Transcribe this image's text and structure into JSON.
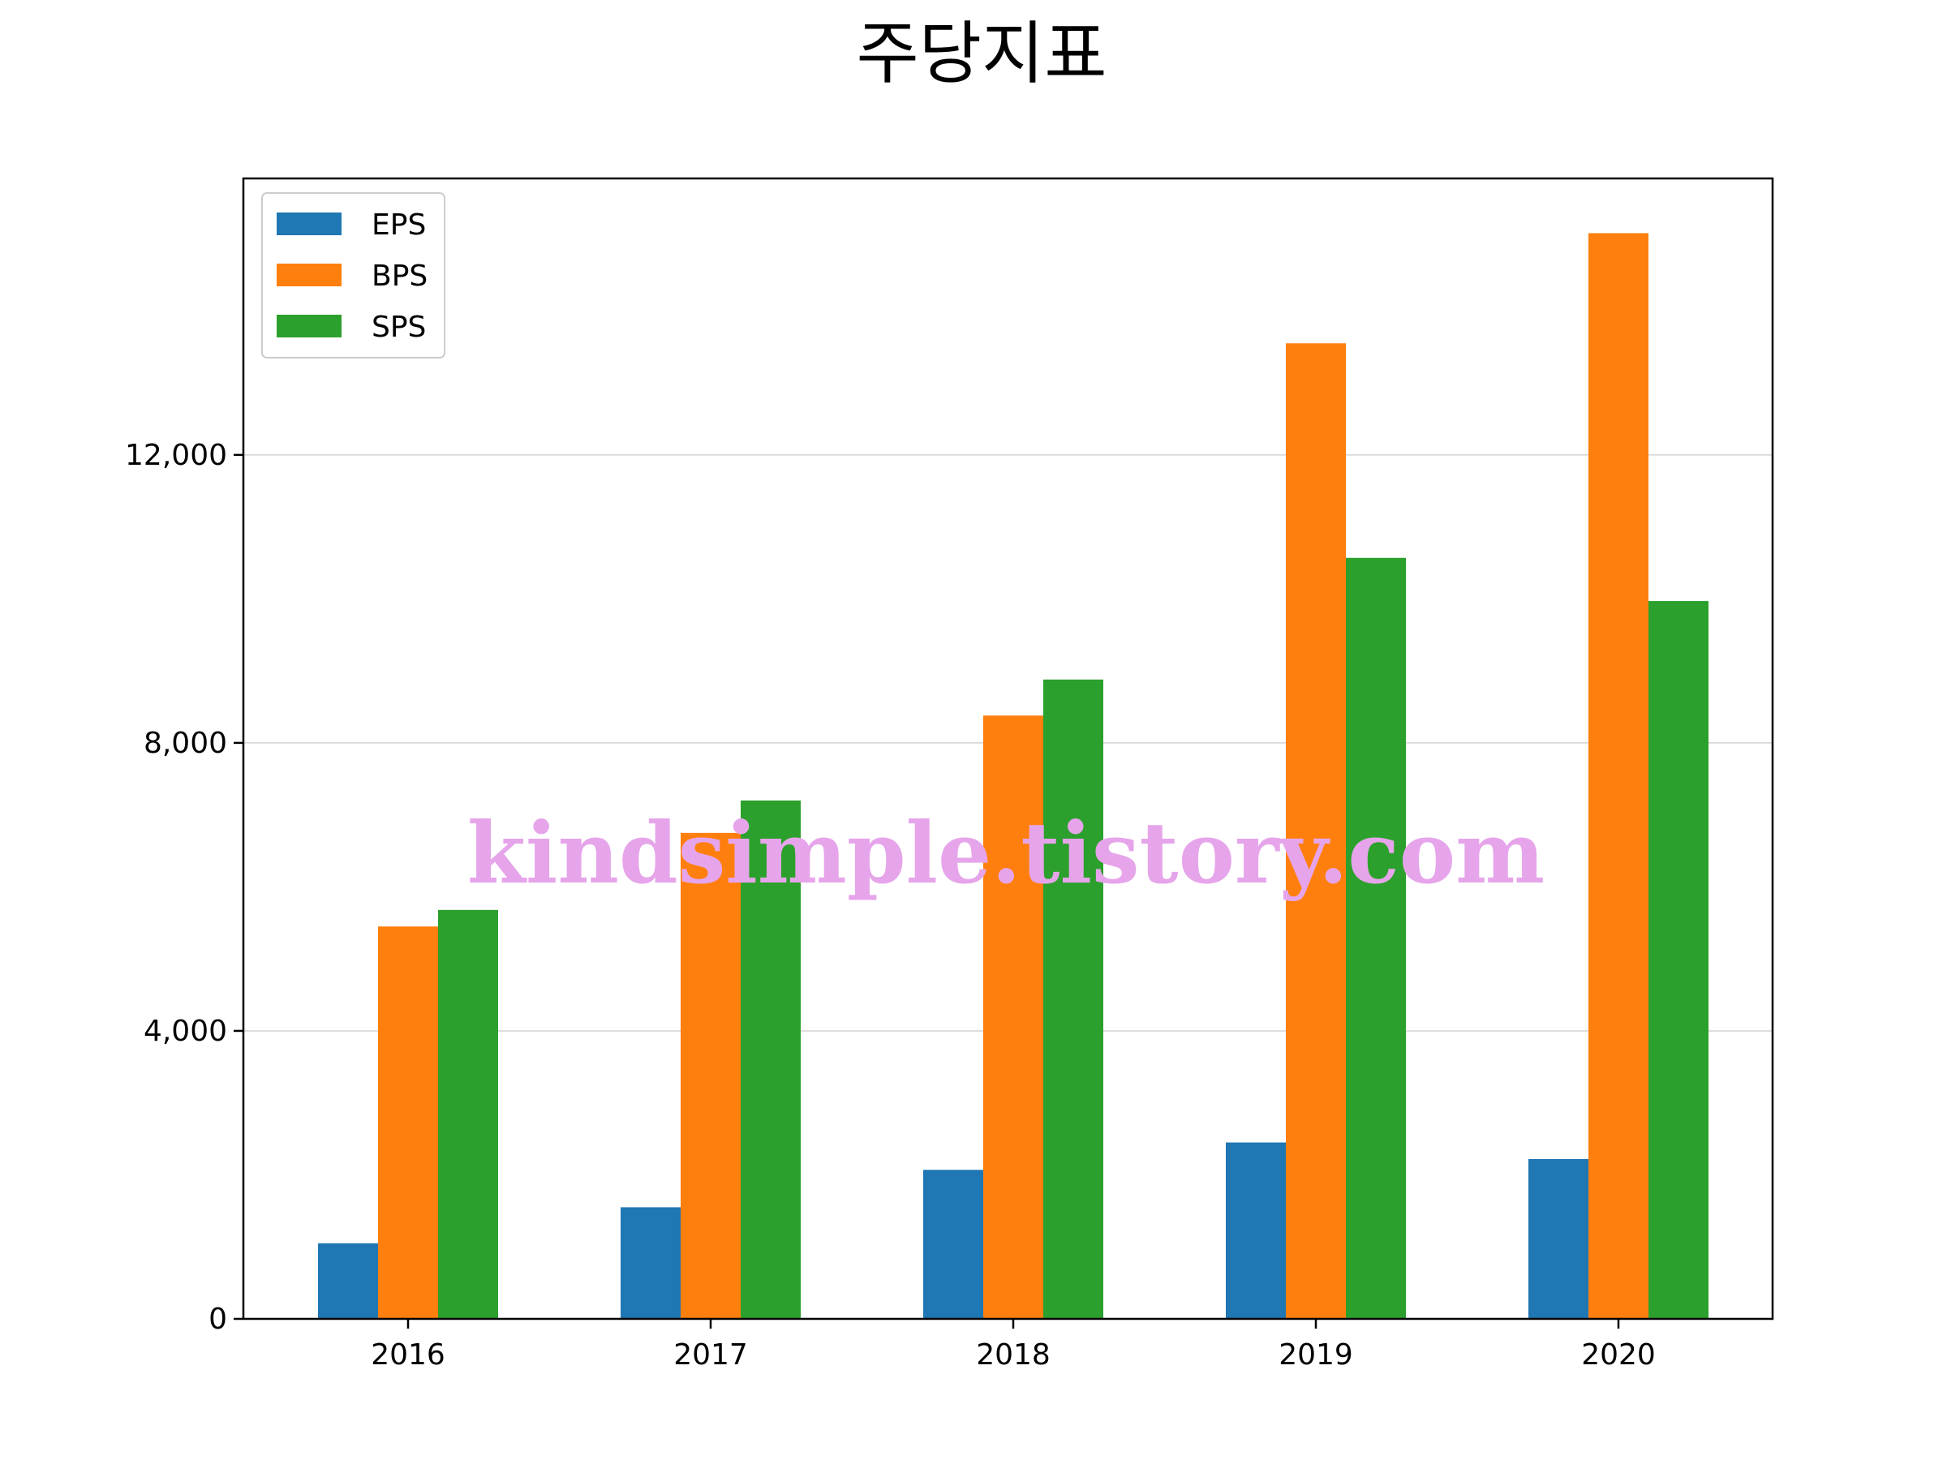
{
  "chart_data": {
    "type": "bar",
    "title": "주당지표",
    "xlabel": "",
    "ylabel": "",
    "categories": [
      "2016",
      "2017",
      "2018",
      "2019",
      "2020"
    ],
    "series": [
      {
        "name": "EPS",
        "color": "#1f77b4",
        "values": [
          1050,
          1550,
          2070,
          2450,
          2220
        ]
      },
      {
        "name": "BPS",
        "color": "#ff7f0e",
        "values": [
          5450,
          6750,
          8380,
          13550,
          15080
        ]
      },
      {
        "name": "SPS",
        "color": "#2ca02c",
        "values": [
          5680,
          7200,
          8880,
          10570,
          9970
        ]
      }
    ],
    "ylim": [
      0,
      15840
    ],
    "yticks": [
      0,
      4000,
      8000,
      12000
    ],
    "ytick_labels": [
      "0",
      "4,000",
      "8,000",
      "12,000"
    ],
    "grid": "horizontal",
    "legend_position": "top-left",
    "watermark": "kindsimple.tistory.com",
    "watermark_color": "#e6a5ea",
    "grid_color": "#d3d3d3",
    "axis_color": "#000000"
  }
}
